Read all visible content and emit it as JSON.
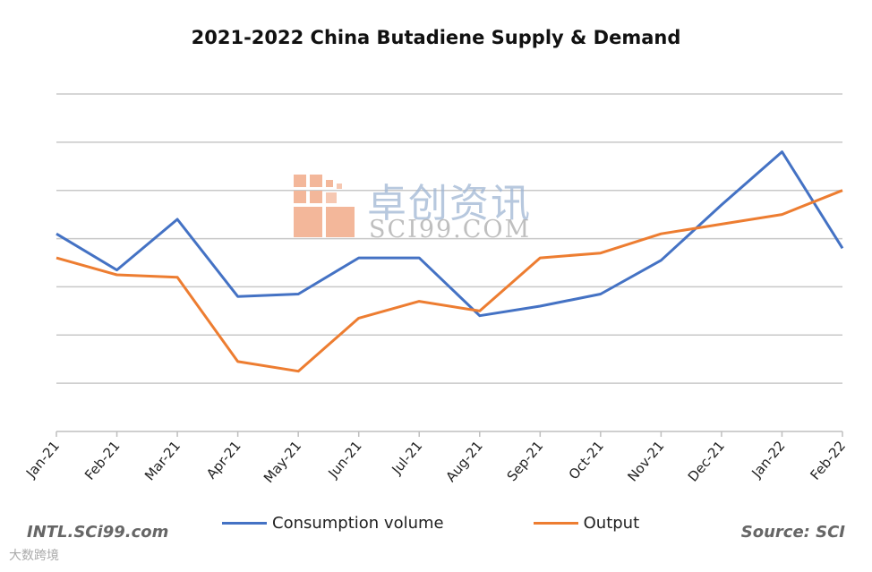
{
  "watermark": {
    "cn_text": "卓创资讯",
    "en_text": "SCI99.COM",
    "bottom_text": "大数跨境"
  },
  "footer": {
    "left_note": "INTL.SCi99.com",
    "right_note": "Source: SCI"
  },
  "colors": {
    "consumption": "#4472c4",
    "output": "#ed7d31",
    "grid": "#c8c8c8"
  },
  "chart_data": {
    "type": "line",
    "title": "2021-2022  China Butadiene Supply & Demand",
    "xlabel": "",
    "ylabel": "",
    "categories": [
      "Jan-21",
      "Feb-21",
      "Mar-21",
      "Apr-21",
      "May-21",
      "Jun-21",
      "Jul-21",
      "Aug-21",
      "Sep-21",
      "Oct-21",
      "Nov-21",
      "Dec-21",
      "Jan-22",
      "Feb-22"
    ],
    "ylim": [
      0,
      7
    ],
    "grid": true,
    "legend_position": "bottom",
    "series": [
      {
        "name": "Consumption volume",
        "values": [
          4.1,
          3.35,
          4.4,
          2.8,
          2.85,
          3.6,
          3.6,
          2.4,
          2.6,
          2.85,
          3.55,
          4.7,
          5.8,
          3.8
        ]
      },
      {
        "name": "Output",
        "values": [
          3.6,
          3.25,
          3.2,
          1.45,
          1.25,
          2.35,
          2.7,
          2.5,
          3.6,
          3.7,
          4.1,
          4.3,
          4.5,
          5.0
        ]
      }
    ]
  }
}
